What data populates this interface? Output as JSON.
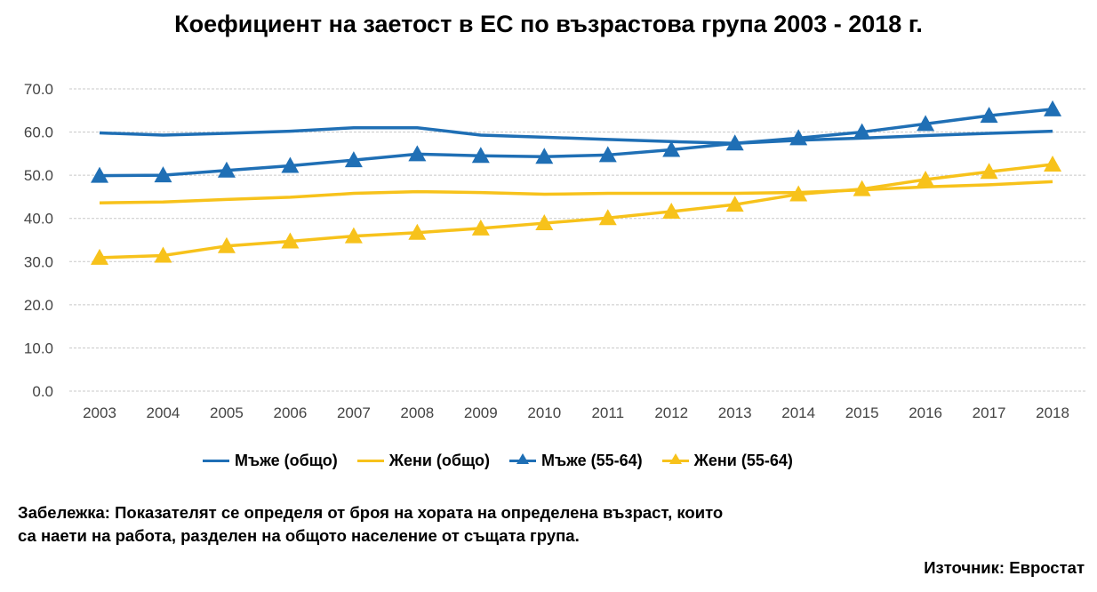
{
  "chart_data": {
    "type": "line",
    "title": "Коефициент на заетост в ЕС по възрастова група 2003 - 2018 г.",
    "xlabel": "",
    "ylabel": "",
    "ylim": [
      0,
      70
    ],
    "yticks": [
      "0.0",
      "10.0",
      "20.0",
      "30.0",
      "40.0",
      "50.0",
      "60.0",
      "70.0"
    ],
    "x": [
      "2003",
      "2004",
      "2005",
      "2006",
      "2007",
      "2008",
      "2009",
      "2010",
      "2011",
      "2012",
      "2013",
      "2014",
      "2015",
      "2016",
      "2017",
      "2018"
    ],
    "grid": true,
    "legend_position": "bottom",
    "series": [
      {
        "name": "Мъже (общо)",
        "color": "#1f6fb5",
        "marker": "none",
        "values": [
          59.8,
          59.3,
          59.7,
          60.2,
          61.0,
          61.0,
          59.3,
          58.8,
          58.3,
          57.8,
          57.4,
          58.1,
          58.6,
          59.2,
          59.7,
          60.2
        ]
      },
      {
        "name": "Жени (общо)",
        "color": "#f7c21b",
        "marker": "none",
        "values": [
          43.6,
          43.8,
          44.4,
          44.9,
          45.8,
          46.2,
          46.0,
          45.6,
          45.8,
          45.8,
          45.8,
          46.0,
          46.6,
          47.3,
          47.8,
          48.5
        ]
      },
      {
        "name": "Мъже (55-64)",
        "color": "#1f6fb5",
        "marker": "triangle",
        "values": [
          49.9,
          50.0,
          51.1,
          52.2,
          53.5,
          54.9,
          54.5,
          54.3,
          54.7,
          55.9,
          57.4,
          58.6,
          60.0,
          61.9,
          63.8,
          65.3
        ]
      },
      {
        "name": "Жени (55-64)",
        "color": "#f7c21b",
        "marker": "triangle",
        "values": [
          30.9,
          31.4,
          33.6,
          34.7,
          35.9,
          36.7,
          37.7,
          38.9,
          40.1,
          41.6,
          43.2,
          45.6,
          46.8,
          49.0,
          50.8,
          52.5
        ]
      }
    ]
  },
  "note": "Забележка: Показателят се определя от броя на хората на определена възраст, които са наети на работа, разделен на общото население от същата група.",
  "source": "Източник: Евростат"
}
